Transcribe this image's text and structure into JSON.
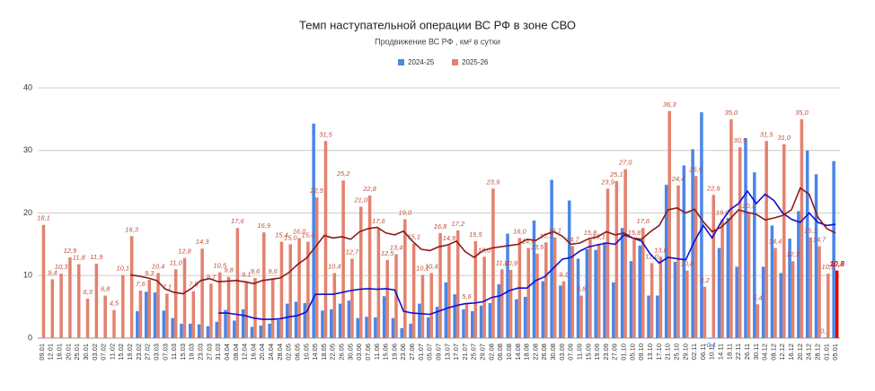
{
  "chart_data": {
    "type": "bar",
    "title": "Темп наступательной операции ВС РФ в зоне СВО",
    "subtitle": "Продвижение ВС РФ , км² в сутки",
    "categories": [
      "09.01",
      "12.01",
      "16.01",
      "20.01",
      "25.01",
      "30.01",
      "03.02",
      "07.02",
      "11.02",
      "15.02",
      "19.02",
      "23.02",
      "27.02",
      "03.03",
      "07.03",
      "11.03",
      "15.03",
      "19.03",
      "23.03",
      "27.03",
      "31.03",
      "04.04",
      "08.04",
      "12.04",
      "16.04",
      "20.04",
      "24.04",
      "28.04",
      "02.05",
      "06.05",
      "10.05",
      "14.05",
      "18.05",
      "22.05",
      "26.05",
      "30.05",
      "03.06",
      "07.06",
      "11.06",
      "15.06",
      "19.06",
      "23.06",
      "27.06",
      "01.07",
      "05.07",
      "09.07",
      "13.07",
      "17.07",
      "21.07",
      "25.07",
      "29.07",
      "02.08",
      "06.08",
      "10.08",
      "14.08",
      "18.08",
      "22.08",
      "26.08",
      "30.08",
      "03.09",
      "07.09",
      "11.09",
      "15.09",
      "19.09",
      "23.09",
      "27.09",
      "01.10",
      "05.10",
      "09.10",
      "13.10",
      "17.10",
      "21.10",
      "25.10",
      "29.10",
      "02.11",
      "06.11",
      "10.11",
      "14.11",
      "18.11",
      "22.11",
      "26.11",
      "30.11",
      "04.12",
      "08.12",
      "12.12",
      "16.12",
      "20.12",
      "24.12",
      "28.12",
      "01.01",
      "05.01"
    ],
    "series": [
      {
        "name": "2024-25",
        "color": "#4a86e8",
        "values": [
          null,
          null,
          null,
          null,
          null,
          null,
          null,
          null,
          null,
          null,
          null,
          4.3,
          7.4,
          7.3,
          4.4,
          3.2,
          2.3,
          2.3,
          2.2,
          1.9,
          2.6,
          4.5,
          2.8,
          4.6,
          1.8,
          2.0,
          2.3,
          2.9,
          5.5,
          5.8,
          5.6,
          34.3,
          4.4,
          4.6,
          5.5,
          6.0,
          3.2,
          3.4,
          3.3,
          6.7,
          3.2,
          1.6,
          2.3,
          5.5,
          3.3,
          5.0,
          8.9,
          7.0,
          4.6,
          4.3,
          5.2,
          5.6,
          8.6,
          16.7,
          6.2,
          6.6,
          18.8,
          9.1,
          25.3,
          8.4,
          22.0,
          12.7,
          14.2,
          14.1,
          15.3,
          8.9,
          17.6,
          12.3,
          14.8,
          6.8,
          6.8,
          24.5,
          12.2,
          27.6,
          30.2,
          36.1,
          -0.1,
          14.4,
          19.2,
          11.4,
          31.9,
          26.5,
          11.4,
          18.0,
          10.4,
          15.9,
          20.3,
          30.0,
          26.2,
          0.1,
          28.3
        ],
        "value_labels": [
          null,
          null,
          null,
          null,
          null,
          null,
          null,
          null,
          null,
          null,
          null,
          null,
          null,
          null,
          null,
          null,
          null,
          null,
          null,
          null,
          null,
          null,
          null,
          null,
          null,
          null,
          null,
          null,
          null,
          null,
          null,
          null,
          null,
          null,
          null,
          null,
          null,
          null,
          null,
          null,
          null,
          null,
          null,
          null,
          null,
          null,
          null,
          null,
          null,
          null,
          null,
          null,
          null,
          null,
          null,
          null,
          null,
          null,
          null,
          null,
          null,
          null,
          null,
          null,
          null,
          null,
          null,
          null,
          null,
          null,
          null,
          null,
          null,
          null,
          null,
          null,
          "-0,1",
          null,
          null,
          null,
          null,
          null,
          null,
          null,
          null,
          null,
          null,
          null,
          null,
          "0,1",
          null
        ]
      },
      {
        "name": "2025-26",
        "color": "#e3826f",
        "last_color": "#e00000",
        "values": [
          18.1,
          9.4,
          10.3,
          12.9,
          11.8,
          6.3,
          11.9,
          6.8,
          4.5,
          10.1,
          16.3,
          7.6,
          9.3,
          10.4,
          7.1,
          11.0,
          12.8,
          7.5,
          14.3,
          8.7,
          10.5,
          9.8,
          17.6,
          9.1,
          9.6,
          16.9,
          9.6,
          15.4,
          15.0,
          16.0,
          15.4,
          22.5,
          31.5,
          10.4,
          25.2,
          12.7,
          21.0,
          22.8,
          17.6,
          12.5,
          13.4,
          19.0,
          15.1,
          10.1,
          10.4,
          16.8,
          14.9,
          17.2,
          5.6,
          15.5,
          13.0,
          23.9,
          11.0,
          10.9,
          16.0,
          14.4,
          13.5,
          15.3,
          16.1,
          9.1,
          14.7,
          6.8,
          15.8,
          15.1,
          23.9,
          25.1,
          27.0,
          15.8,
          17.6,
          12.0,
          13.0,
          36.3,
          24.4,
          10.8,
          25.9,
          8.2,
          22.9,
          19.0,
          35.0,
          30.5,
          20.1,
          5.4,
          31.5,
          14.4,
          31.0,
          12.3,
          35.0,
          16.1,
          14.7,
          10.3,
          10.8
        ],
        "value_labels": [
          "18,1",
          "9,4",
          "10,3",
          "12,9",
          "11,8",
          "6,3",
          "11,9",
          "6,8",
          "4,5",
          "10,1",
          "16,3",
          "7,6",
          "9,3",
          "10,4",
          "7,1",
          "11,0",
          "12,8",
          "7,5",
          "14,3",
          "8,7",
          "10,5",
          "9,8",
          "17,6",
          "9,1",
          "9,6",
          "16,9",
          "9,6",
          "15,4",
          "15,0",
          "16,0",
          "15,4",
          "22,5",
          "31,5",
          "10,4",
          "25,2",
          "12,7",
          "21,0",
          "22,8",
          "17,6",
          "12,5",
          "13,4",
          "19,0",
          "15,1",
          "10,1",
          "10,4",
          "16,8",
          "14,9",
          "17,2",
          "5,6",
          "15,5",
          "13,0",
          "23,9",
          "11,0",
          "10,9",
          "16,0",
          "14,4",
          "13,5",
          "15,3",
          "16,1",
          "9,1",
          "14,7",
          "6,8",
          "15,8",
          "15,1",
          "23,9",
          "25,1",
          "27,0",
          "15,8",
          "17,6",
          "12,0",
          "13,0",
          "36,3",
          "24,4",
          "10,8",
          "25,9",
          "8,2",
          "22,9",
          "19,0",
          "35,0",
          "30,5",
          "20,1",
          "5,4",
          "31,5",
          "14,4",
          "31,0",
          "12,3",
          "35,0",
          "16,1",
          "14,7",
          "10,3",
          "10,8"
        ]
      }
    ],
    "lines": [
      {
        "color": "#1010d0",
        "values": [
          null,
          null,
          null,
          null,
          null,
          null,
          null,
          null,
          null,
          null,
          null,
          null,
          null,
          null,
          null,
          null,
          null,
          null,
          null,
          null,
          4.0,
          4.0,
          3.8,
          3.6,
          3.2,
          3.0,
          3.0,
          3.1,
          3.4,
          3.6,
          4.2,
          7.0,
          7.0,
          7.0,
          7.3,
          7.6,
          7.8,
          7.9,
          7.8,
          7.9,
          7.7,
          4.3,
          4.0,
          3.9,
          3.8,
          4.3,
          4.8,
          5.2,
          5.5,
          5.6,
          5.8,
          6.5,
          6.8,
          7.6,
          8.0,
          8.0,
          9.2,
          9.8,
          11.2,
          12.6,
          12.9,
          13.9,
          14.6,
          14.9,
          15.2,
          15.0,
          16.5,
          16.0,
          15.5,
          13.4,
          12.0,
          12.9,
          12.7,
          12.5,
          15.5,
          18.0,
          16.0,
          18.5,
          20.5,
          21.5,
          23.5,
          21.5,
          23.0,
          22.0,
          20.0,
          19.0,
          18.5,
          20.0,
          18.5,
          18.0,
          18.2
        ]
      },
      {
        "color": "#8b1a1a",
        "values": [
          null,
          null,
          null,
          null,
          null,
          null,
          null,
          null,
          null,
          null,
          10.1,
          9.9,
          9.6,
          9.2,
          7.8,
          7.3,
          7.1,
          8.0,
          9.2,
          9.5,
          9.0,
          9.1,
          9.2,
          9.0,
          8.7,
          9.2,
          9.4,
          9.6,
          10.5,
          11.8,
          12.8,
          14.6,
          16.4,
          16.0,
          16.2,
          15.8,
          17.0,
          17.5,
          17.7,
          16.8,
          16.5,
          17.1,
          15.5,
          14.2,
          14.0,
          14.6,
          14.9,
          15.5,
          13.8,
          12.9,
          14.0,
          14.4,
          14.6,
          14.8,
          15.0,
          15.8,
          15.6,
          16.5,
          17.0,
          16.3,
          15.0,
          15.2,
          15.9,
          16.2,
          17.0,
          16.5,
          16.8,
          16.0,
          15.8,
          17.0,
          18.0,
          20.5,
          20.8,
          20.0,
          20.6,
          18.6,
          17.0,
          17.7,
          19.0,
          20.5,
          20.1,
          19.8,
          18.9,
          19.2,
          19.6,
          20.5,
          24.0,
          23.0,
          19.3,
          17.5,
          16.8
        ]
      }
    ],
    "ylim": [
      0,
      40
    ],
    "yticks": [
      0,
      10,
      20,
      30,
      40
    ],
    "grid": true
  }
}
